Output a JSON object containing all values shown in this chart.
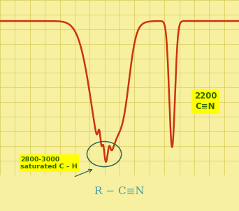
{
  "background_color": "#f7f0a0",
  "grid_color": "#d8cc55",
  "line_color": "#cc3311",
  "line_width": 1.8,
  "circle_color": "#336655",
  "label1_line1": "2800-3000",
  "label1_line2": "saturated C – H",
  "label2_line1": "2200",
  "label2_line2": "C≡N",
  "bottom_text": "R − C≡N",
  "label_bg_color": "#ffff00",
  "label_text_color": "#336600",
  "bottom_text_color": "#4499aa",
  "figsize": [
    3.42,
    3.02
  ],
  "dpi": 100
}
